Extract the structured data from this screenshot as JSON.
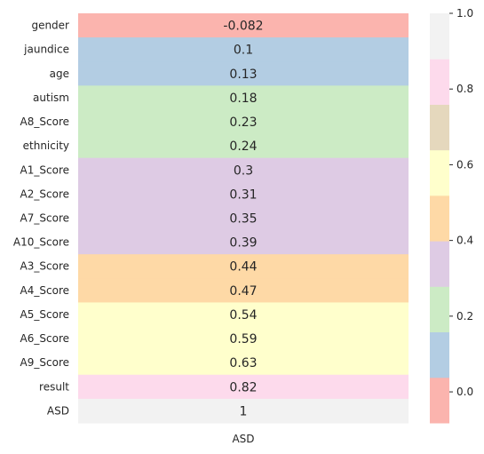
{
  "chart_data": {
    "type": "heatmap",
    "title": "",
    "xlabel": "",
    "ylabel": "",
    "column": "ASD",
    "rows": [
      "gender",
      "jaundice",
      "age",
      "autism",
      "A8_Score",
      "ethnicity",
      "A1_Score",
      "A2_Score",
      "A7_Score",
      "A10_Score",
      "A3_Score",
      "A4_Score",
      "A5_Score",
      "A6_Score",
      "A9_Score",
      "result",
      "ASD"
    ],
    "values": [
      -0.082,
      0.1,
      0.13,
      0.18,
      0.23,
      0.24,
      0.3,
      0.31,
      0.35,
      0.39,
      0.44,
      0.47,
      0.54,
      0.59,
      0.63,
      0.82,
      1
    ],
    "value_labels": [
      "-0.082",
      "0.1",
      "0.13",
      "0.18",
      "0.23",
      "0.24",
      "0.3",
      "0.31",
      "0.35",
      "0.39",
      "0.44",
      "0.47",
      "0.54",
      "0.59",
      "0.63",
      "0.82",
      "1"
    ],
    "colorbar": {
      "range": [
        -0.082,
        1
      ],
      "palette": "Pastel1",
      "colors": [
        "#fbb4ae",
        "#b3cde3",
        "#ccebc5",
        "#decbe4",
        "#fed9a6",
        "#ffffcc",
        "#e5d8bd",
        "#fddaec",
        "#f2f2f2"
      ],
      "ticks": [
        0.0,
        0.2,
        0.4,
        0.6,
        0.8,
        1.0
      ],
      "tick_labels": [
        "0.0",
        "0.2",
        "0.4",
        "0.6",
        "0.8",
        "1.0"
      ]
    }
  }
}
